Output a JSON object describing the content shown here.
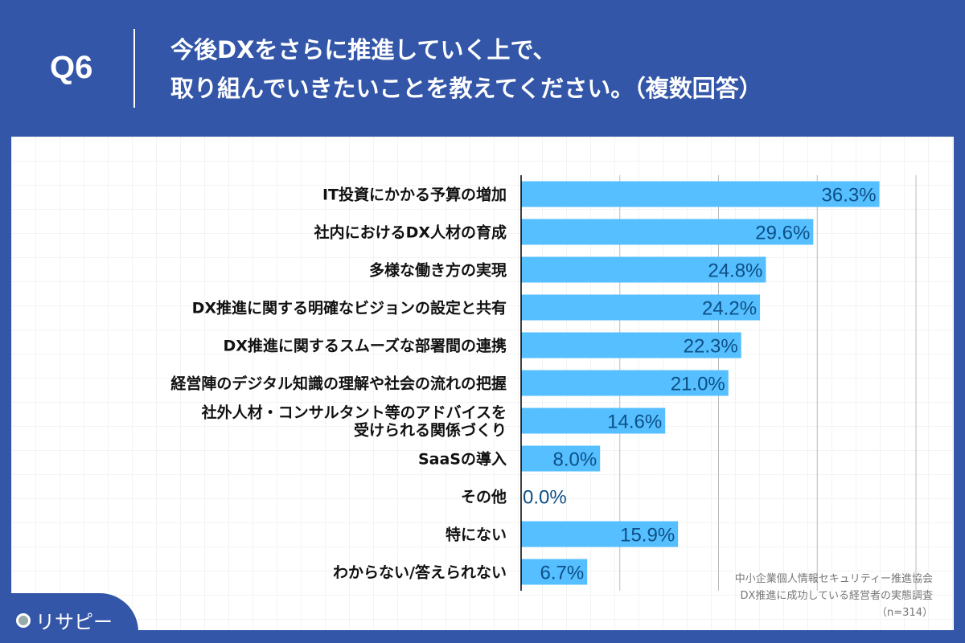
{
  "header": {
    "question": "Q6",
    "title_line1": "今後DXをさらに推進していく上で、",
    "title_line2": "取り組んでいきたいことを教えてください。（複数回答）"
  },
  "chart_data": {
    "type": "bar",
    "orientation": "horizontal",
    "categories": [
      "IT投資にかかる予算の増加",
      "社内におけるDX人材の育成",
      "多様な働き方の実現",
      "DX推進に関する明確なビジョンの設定と共有",
      "DX推進に関するスムーズな部署間の連携",
      "経営陣のデジタル知識の理解や社会の流れの把握",
      "社外人材・コンサルタント等のアドバイスを\n受けられる関係づくり",
      "SaaSの導入",
      "その他",
      "特にない",
      "わからない/答えられない"
    ],
    "values": [
      36.3,
      29.6,
      24.8,
      24.2,
      22.3,
      21.0,
      14.6,
      8.0,
      0.0,
      15.9,
      6.7
    ],
    "data_labels": [
      "36.3%",
      "29.6%",
      "24.8%",
      "24.2%",
      "22.3%",
      "21.0%",
      "14.6%",
      "8.0%",
      "0.0%",
      "15.9%",
      "6.7%"
    ],
    "xlim": [
      0,
      40
    ],
    "grid": true,
    "bar_color": "#55bfff",
    "label_color": "#0e4f86"
  },
  "source": {
    "line1": "中小企業個人情報セキュリティー推進協会",
    "line2": "DX推進に成功している経営者の実態調査",
    "line3": "（n=314）"
  },
  "logo": {
    "text": "リサピー"
  }
}
